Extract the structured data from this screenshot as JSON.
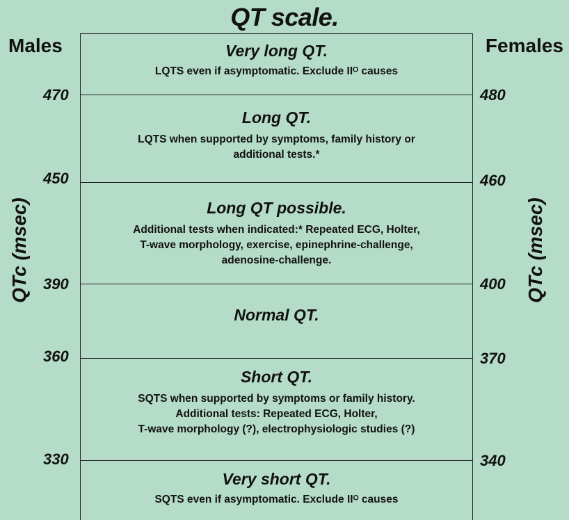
{
  "title": "QT scale.",
  "left_header": "Males",
  "right_header": "Females",
  "axis_label": "QTc (msec)",
  "zones": [
    {
      "title": "Very long QT.",
      "desc": [
        "LQTS even if asymptomatic. Exclude IIᴼ causes"
      ]
    },
    {
      "title": "Long QT.",
      "desc": [
        "LQTS when supported by symptoms, family history or",
        "additional tests.*"
      ]
    },
    {
      "title": "Long QT possible.",
      "desc": [
        "Additional tests when indicated:* Repeated ECG, Holter,",
        "T-wave morphology, exercise, epinephrine-challenge,",
        "adenosine-challenge."
      ]
    },
    {
      "title": "Normal QT.",
      "desc": []
    },
    {
      "title": "Short QT.",
      "desc": [
        "SQTS when supported by symptoms or family history.",
        "Additional tests: Repeated ECG, Holter,",
        "T-wave morphology (?), electrophysiologic studies (?)"
      ]
    },
    {
      "title": "Very short QT.",
      "desc": [
        "SQTS even if asymptomatic. Exclude IIᴼ causes"
      ]
    }
  ],
  "thresholds": [
    {
      "male": "470",
      "female": "480"
    },
    {
      "male": "450",
      "female": "460"
    },
    {
      "male": "390",
      "female": "400"
    },
    {
      "male": "360",
      "female": "370"
    },
    {
      "male": "330",
      "female": "340"
    }
  ]
}
